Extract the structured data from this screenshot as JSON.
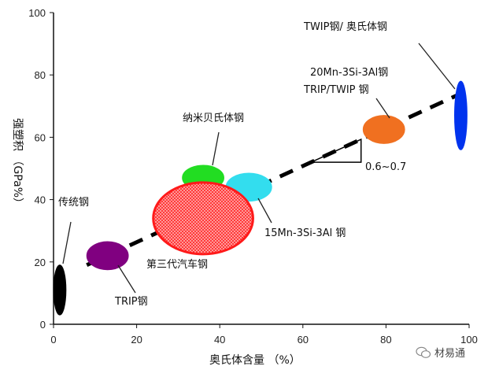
{
  "chart_data": {
    "type": "scatter",
    "xlabel": "奥氏体含量 （%）",
    "ylabel": "强塑积 （GPa%）",
    "xlim": [
      0,
      100
    ],
    "ylim": [
      0,
      100
    ],
    "x_ticks": [
      "0",
      "20",
      "40",
      "60",
      "80",
      "100"
    ],
    "y_ticks": [
      "0",
      "20",
      "40",
      "60",
      "80",
      "100"
    ],
    "grid": false,
    "regions": [
      {
        "label": "传统钢",
        "x": 1.5,
        "y": 11,
        "rx": 1.5,
        "ry": 8,
        "color": "#000000"
      },
      {
        "label": "TRIP钢",
        "x": 13,
        "y": 22,
        "rx": 5,
        "ry": 4.5,
        "color": "#800080"
      },
      {
        "label": "纳米贝氏体钢",
        "x": 36,
        "y": 47,
        "rx": 5,
        "ry": 4,
        "color": "#22dd22"
      },
      {
        "label": "15Mn-3Si-3Al 钢",
        "x": 47,
        "y": 44,
        "rx": 5.5,
        "ry": 4.5,
        "color": "#33ddee"
      },
      {
        "label": "第三代汽车钢",
        "x": 36,
        "y": 34,
        "rx": 12,
        "ry": 11.5,
        "color": "#ff1a1a"
      },
      {
        "label": "20Mn-3Si-3Al钢 TRIP/TWIP 钢",
        "x": 79.5,
        "y": 62.5,
        "rx": 5,
        "ry": 4.5,
        "color": "#f07020"
      },
      {
        "label": "TWIP钢/ 奥氏体钢",
        "x": 98,
        "y": 67,
        "rx": 1.5,
        "ry": 11,
        "color": "#0033ee"
      }
    ],
    "trend_line": {
      "x": [
        8,
        98
      ],
      "y": [
        19,
        74
      ],
      "label": "0.6~0.7"
    }
  },
  "annotations": {
    "traditional": "传统钢",
    "trip": "TRIP钢",
    "nano_bainite": "纳米贝氏体钢",
    "mn15": "15Mn-3Si-3Al 钢",
    "third_gen": "第三代汽车钢",
    "mn20_line1": "20Mn-3Si-3Al钢",
    "mn20_line2": "TRIP/TWIP 钢",
    "twip": "TWIP钢/ 奥氏体钢",
    "slope": "0.6~0.7"
  },
  "watermark": "材易通"
}
